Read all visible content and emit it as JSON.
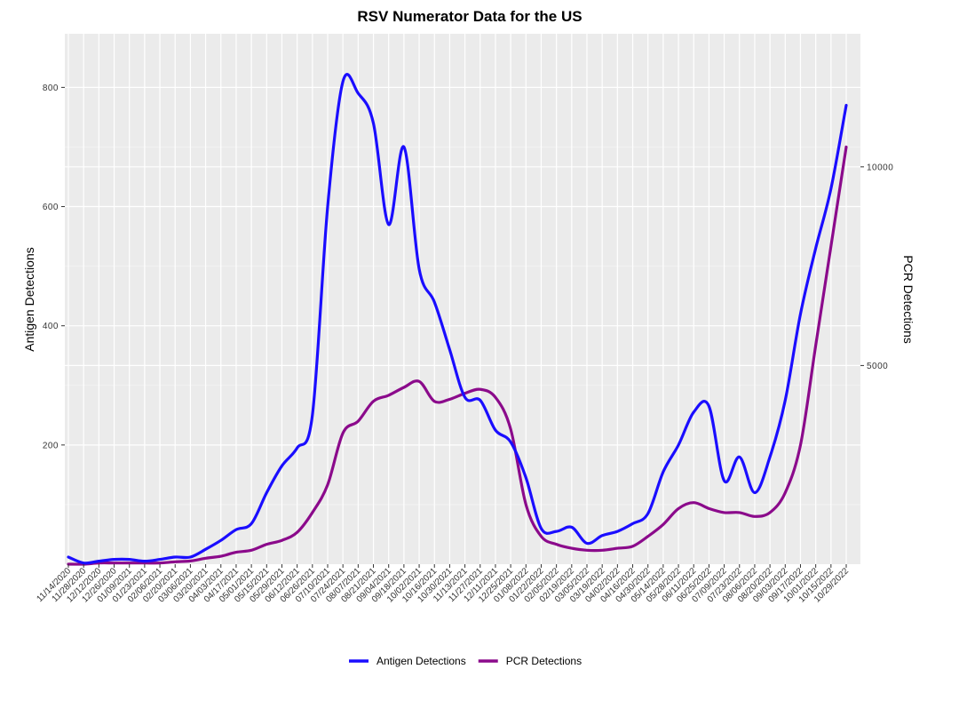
{
  "chart_data": {
    "type": "line",
    "title": "RSV Numerator Data for the US",
    "ylabel": "Antigen Detections",
    "y2label": "PCR Detections",
    "xlabel": "",
    "ylim": [
      0,
      890
    ],
    "y2lim": [
      0,
      13350
    ],
    "yticks": [
      200,
      400,
      600,
      800
    ],
    "y2ticks": [
      5000,
      10000
    ],
    "grid": true,
    "legend": "bottom",
    "x": [
      "11/14/2020",
      "11/28/2020",
      "12/12/2020",
      "12/26/2020",
      "01/09/2021",
      "01/23/2021",
      "02/06/2021",
      "02/20/2021",
      "03/06/2021",
      "03/20/2021",
      "04/03/2021",
      "04/17/2021",
      "05/01/2021",
      "05/15/2021",
      "05/29/2021",
      "06/12/2021",
      "06/26/2021",
      "07/10/2021",
      "07/24/2021",
      "08/07/2021",
      "08/21/2021",
      "09/04/2021",
      "09/18/2021",
      "10/02/2021",
      "10/16/2021",
      "10/30/2021",
      "11/13/2021",
      "11/27/2021",
      "12/11/2021",
      "12/25/2021",
      "01/08/2022",
      "01/22/2022",
      "02/05/2022",
      "02/19/2022",
      "03/05/2022",
      "03/19/2022",
      "04/02/2022",
      "04/16/2022",
      "04/30/2022",
      "05/14/2022",
      "05/28/2022",
      "06/11/2022",
      "06/25/2022",
      "07/09/2022",
      "07/23/2022",
      "08/06/2022",
      "08/20/2022",
      "09/03/2022",
      "09/17/2022",
      "10/01/2022",
      "10/15/2022",
      "10/29/2022"
    ],
    "series": [
      {
        "name": "Antigen Detections",
        "axis": "left",
        "color": "#1a0dff",
        "values": [
          12,
          2,
          5,
          8,
          8,
          5,
          8,
          12,
          12,
          25,
          40,
          58,
          68,
          120,
          165,
          195,
          250,
          600,
          810,
          790,
          740,
          570,
          700,
          495,
          440,
          360,
          280,
          275,
          225,
          205,
          145,
          60,
          55,
          62,
          35,
          48,
          55,
          68,
          85,
          155,
          200,
          255,
          265,
          140,
          180,
          120,
          180,
          275,
          420,
          530,
          630,
          770
        ]
      },
      {
        "name": "PCR Detections",
        "axis": "right",
        "color": "#8b0a8b",
        "values": [
          0,
          0,
          30,
          30,
          30,
          30,
          30,
          60,
          80,
          150,
          200,
          300,
          350,
          500,
          600,
          800,
          1300,
          2000,
          3300,
          3600,
          4100,
          4250,
          4450,
          4600,
          4100,
          4150,
          4300,
          4400,
          4200,
          3400,
          1500,
          700,
          500,
          400,
          350,
          350,
          400,
          450,
          700,
          1000,
          1400,
          1550,
          1400,
          1300,
          1300,
          1200,
          1300,
          1800,
          3000,
          5500,
          8000,
          10500
        ]
      }
    ]
  }
}
